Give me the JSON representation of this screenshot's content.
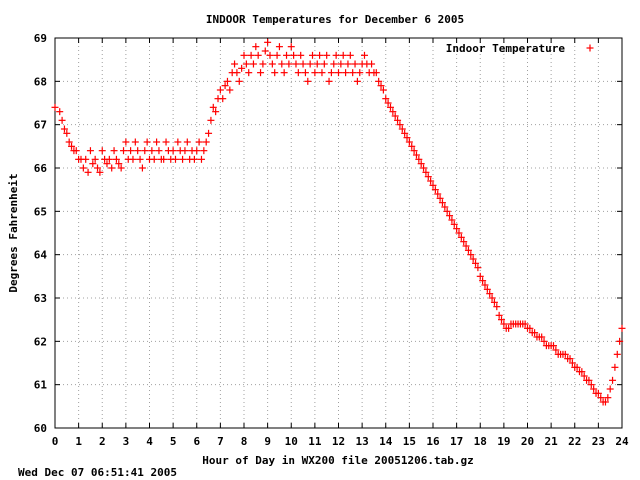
{
  "chart_data": {
    "type": "scatter",
    "title": "INDOOR Temperatures for December  6 2005",
    "xlabel": "Hour of Day in WX200 file 20051206.tab.gz",
    "ylabel": "Degrees Fahrenheit",
    "footer": "Wed Dec 07 06:51:41 2005",
    "xlim": [
      0,
      24
    ],
    "ylim": [
      60,
      69
    ],
    "grid": true,
    "legend_position": "top-right",
    "marker": "+",
    "color": "#ff0000",
    "xticks": [
      "0",
      "1",
      "2",
      "3",
      "4",
      "5",
      "6",
      "7",
      "8",
      "9",
      "10",
      "11",
      "12",
      "13",
      "14",
      "15",
      "16",
      "17",
      "18",
      "19",
      "20",
      "21",
      "22",
      "23",
      "24"
    ],
    "yticks": [
      "60",
      "61",
      "62",
      "63",
      "64",
      "65",
      "66",
      "67",
      "68",
      "69"
    ],
    "series": [
      {
        "name": "Indoor Temperature",
        "points": [
          [
            0.0,
            67.4
          ],
          [
            0.2,
            67.3
          ],
          [
            0.3,
            67.1
          ],
          [
            0.4,
            66.9
          ],
          [
            0.5,
            66.8
          ],
          [
            0.6,
            66.6
          ],
          [
            0.7,
            66.5
          ],
          [
            0.8,
            66.4
          ],
          [
            0.9,
            66.4
          ],
          [
            1.0,
            66.2
          ],
          [
            1.1,
            66.2
          ],
          [
            1.2,
            66.0
          ],
          [
            1.3,
            66.2
          ],
          [
            1.4,
            65.9
          ],
          [
            1.5,
            66.4
          ],
          [
            1.6,
            66.1
          ],
          [
            1.7,
            66.2
          ],
          [
            1.8,
            66.0
          ],
          [
            1.9,
            65.9
          ],
          [
            2.0,
            66.4
          ],
          [
            2.1,
            66.2
          ],
          [
            2.2,
            66.1
          ],
          [
            2.3,
            66.2
          ],
          [
            2.4,
            66.0
          ],
          [
            2.5,
            66.4
          ],
          [
            2.6,
            66.2
          ],
          [
            2.7,
            66.1
          ],
          [
            2.8,
            66.0
          ],
          [
            2.9,
            66.4
          ],
          [
            3.0,
            66.6
          ],
          [
            3.1,
            66.2
          ],
          [
            3.2,
            66.4
          ],
          [
            3.3,
            66.2
          ],
          [
            3.4,
            66.6
          ],
          [
            3.5,
            66.4
          ],
          [
            3.6,
            66.2
          ],
          [
            3.7,
            66.0
          ],
          [
            3.8,
            66.4
          ],
          [
            3.9,
            66.6
          ],
          [
            4.0,
            66.2
          ],
          [
            4.1,
            66.4
          ],
          [
            4.2,
            66.2
          ],
          [
            4.3,
            66.6
          ],
          [
            4.4,
            66.4
          ],
          [
            4.5,
            66.2
          ],
          [
            4.6,
            66.2
          ],
          [
            4.7,
            66.6
          ],
          [
            4.8,
            66.4
          ],
          [
            4.9,
            66.2
          ],
          [
            5.0,
            66.4
          ],
          [
            5.1,
            66.2
          ],
          [
            5.2,
            66.6
          ],
          [
            5.3,
            66.4
          ],
          [
            5.4,
            66.2
          ],
          [
            5.5,
            66.4
          ],
          [
            5.6,
            66.6
          ],
          [
            5.7,
            66.2
          ],
          [
            5.8,
            66.4
          ],
          [
            5.9,
            66.2
          ],
          [
            6.0,
            66.4
          ],
          [
            6.1,
            66.6
          ],
          [
            6.2,
            66.2
          ],
          [
            6.3,
            66.4
          ],
          [
            6.4,
            66.6
          ],
          [
            6.5,
            66.8
          ],
          [
            6.6,
            67.1
          ],
          [
            6.7,
            67.4
          ],
          [
            6.8,
            67.3
          ],
          [
            6.9,
            67.6
          ],
          [
            7.0,
            67.8
          ],
          [
            7.1,
            67.6
          ],
          [
            7.2,
            67.9
          ],
          [
            7.3,
            68.0
          ],
          [
            7.4,
            67.8
          ],
          [
            7.5,
            68.2
          ],
          [
            7.6,
            68.4
          ],
          [
            7.7,
            68.2
          ],
          [
            7.8,
            68.0
          ],
          [
            7.9,
            68.3
          ],
          [
            8.0,
            68.6
          ],
          [
            8.1,
            68.4
          ],
          [
            8.2,
            68.2
          ],
          [
            8.3,
            68.6
          ],
          [
            8.4,
            68.4
          ],
          [
            8.5,
            68.8
          ],
          [
            8.6,
            68.6
          ],
          [
            8.7,
            68.2
          ],
          [
            8.8,
            68.4
          ],
          [
            8.9,
            68.7
          ],
          [
            9.0,
            68.9
          ],
          [
            9.1,
            68.6
          ],
          [
            9.2,
            68.4
          ],
          [
            9.3,
            68.2
          ],
          [
            9.4,
            68.6
          ],
          [
            9.5,
            68.8
          ],
          [
            9.6,
            68.4
          ],
          [
            9.7,
            68.2
          ],
          [
            9.8,
            68.6
          ],
          [
            9.9,
            68.4
          ],
          [
            10.0,
            68.8
          ],
          [
            10.1,
            68.6
          ],
          [
            10.2,
            68.4
          ],
          [
            10.3,
            68.2
          ],
          [
            10.4,
            68.6
          ],
          [
            10.5,
            68.4
          ],
          [
            10.6,
            68.2
          ],
          [
            10.7,
            68.0
          ],
          [
            10.8,
            68.4
          ],
          [
            10.9,
            68.6
          ],
          [
            11.0,
            68.2
          ],
          [
            11.1,
            68.4
          ],
          [
            11.2,
            68.6
          ],
          [
            11.3,
            68.2
          ],
          [
            11.4,
            68.4
          ],
          [
            11.5,
            68.6
          ],
          [
            11.6,
            68.0
          ],
          [
            11.7,
            68.2
          ],
          [
            11.8,
            68.4
          ],
          [
            11.9,
            68.6
          ],
          [
            12.0,
            68.2
          ],
          [
            12.1,
            68.4
          ],
          [
            12.2,
            68.6
          ],
          [
            12.3,
            68.2
          ],
          [
            12.4,
            68.4
          ],
          [
            12.5,
            68.6
          ],
          [
            12.6,
            68.2
          ],
          [
            12.7,
            68.4
          ],
          [
            12.8,
            68.0
          ],
          [
            12.9,
            68.2
          ],
          [
            13.0,
            68.4
          ],
          [
            13.1,
            68.6
          ],
          [
            13.2,
            68.4
          ],
          [
            13.3,
            68.2
          ],
          [
            13.4,
            68.4
          ],
          [
            13.5,
            68.2
          ],
          [
            13.6,
            68.2
          ],
          [
            13.7,
            68.0
          ],
          [
            13.8,
            67.9
          ],
          [
            13.9,
            67.8
          ],
          [
            14.0,
            67.6
          ],
          [
            14.1,
            67.5
          ],
          [
            14.2,
            67.4
          ],
          [
            14.3,
            67.3
          ],
          [
            14.4,
            67.2
          ],
          [
            14.5,
            67.1
          ],
          [
            14.6,
            67.0
          ],
          [
            14.7,
            66.9
          ],
          [
            14.8,
            66.8
          ],
          [
            14.9,
            66.7
          ],
          [
            15.0,
            66.6
          ],
          [
            15.1,
            66.5
          ],
          [
            15.2,
            66.4
          ],
          [
            15.3,
            66.3
          ],
          [
            15.4,
            66.2
          ],
          [
            15.5,
            66.1
          ],
          [
            15.6,
            66.0
          ],
          [
            15.7,
            65.9
          ],
          [
            15.8,
            65.8
          ],
          [
            15.9,
            65.7
          ],
          [
            16.0,
            65.6
          ],
          [
            16.1,
            65.5
          ],
          [
            16.2,
            65.4
          ],
          [
            16.3,
            65.3
          ],
          [
            16.4,
            65.2
          ],
          [
            16.5,
            65.1
          ],
          [
            16.6,
            65.0
          ],
          [
            16.7,
            64.9
          ],
          [
            16.8,
            64.8
          ],
          [
            16.9,
            64.7
          ],
          [
            17.0,
            64.6
          ],
          [
            17.1,
            64.5
          ],
          [
            17.2,
            64.4
          ],
          [
            17.3,
            64.3
          ],
          [
            17.4,
            64.2
          ],
          [
            17.5,
            64.1
          ],
          [
            17.6,
            64.0
          ],
          [
            17.7,
            63.9
          ],
          [
            17.8,
            63.8
          ],
          [
            17.9,
            63.7
          ],
          [
            18.0,
            63.5
          ],
          [
            18.1,
            63.4
          ],
          [
            18.2,
            63.3
          ],
          [
            18.3,
            63.2
          ],
          [
            18.4,
            63.1
          ],
          [
            18.5,
            63.0
          ],
          [
            18.6,
            62.9
          ],
          [
            18.7,
            62.8
          ],
          [
            18.8,
            62.6
          ],
          [
            18.9,
            62.5
          ],
          [
            19.0,
            62.4
          ],
          [
            19.1,
            62.3
          ],
          [
            19.2,
            62.3
          ],
          [
            19.3,
            62.4
          ],
          [
            19.4,
            62.4
          ],
          [
            19.5,
            62.4
          ],
          [
            19.6,
            62.4
          ],
          [
            19.7,
            62.4
          ],
          [
            19.8,
            62.4
          ],
          [
            19.9,
            62.4
          ],
          [
            20.0,
            62.3
          ],
          [
            20.1,
            62.3
          ],
          [
            20.2,
            62.2
          ],
          [
            20.3,
            62.2
          ],
          [
            20.4,
            62.1
          ],
          [
            20.5,
            62.1
          ],
          [
            20.6,
            62.1
          ],
          [
            20.7,
            62.0
          ],
          [
            20.8,
            61.9
          ],
          [
            20.9,
            61.9
          ],
          [
            21.0,
            61.9
          ],
          [
            21.1,
            61.9
          ],
          [
            21.2,
            61.8
          ],
          [
            21.3,
            61.7
          ],
          [
            21.4,
            61.7
          ],
          [
            21.5,
            61.7
          ],
          [
            21.6,
            61.7
          ],
          [
            21.7,
            61.6
          ],
          [
            21.8,
            61.6
          ],
          [
            21.9,
            61.5
          ],
          [
            22.0,
            61.4
          ],
          [
            22.1,
            61.4
          ],
          [
            22.2,
            61.3
          ],
          [
            22.3,
            61.3
          ],
          [
            22.4,
            61.2
          ],
          [
            22.5,
            61.1
          ],
          [
            22.6,
            61.1
          ],
          [
            22.7,
            61.0
          ],
          [
            22.8,
            60.9
          ],
          [
            22.9,
            60.8
          ],
          [
            23.0,
            60.8
          ],
          [
            23.1,
            60.7
          ],
          [
            23.2,
            60.6
          ],
          [
            23.3,
            60.6
          ],
          [
            23.4,
            60.7
          ],
          [
            23.5,
            60.9
          ],
          [
            23.6,
            61.1
          ],
          [
            23.7,
            61.4
          ],
          [
            23.8,
            61.7
          ],
          [
            23.9,
            62.0
          ],
          [
            24.0,
            62.3
          ]
        ]
      }
    ]
  }
}
